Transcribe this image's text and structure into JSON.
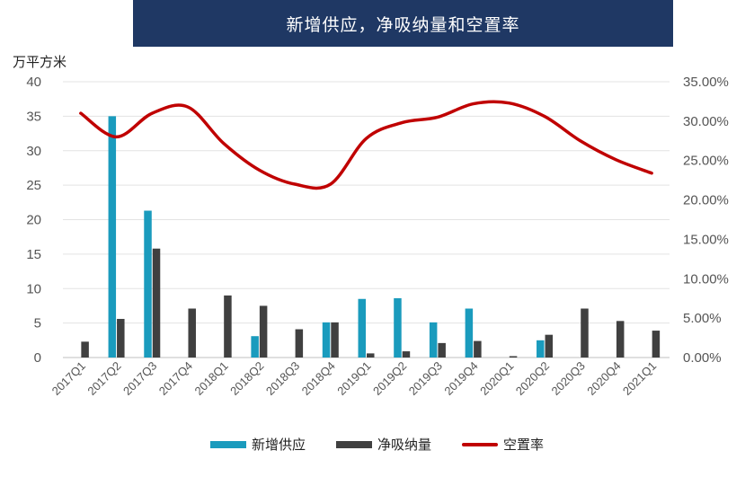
{
  "title": "新增供应，净吸纳量和空置率",
  "unit_label": "万平方米",
  "colors": {
    "supply": "#1a9bbd",
    "absorption": "#404040",
    "vacancy": "#c00000",
    "title_bg": "#1f3864"
  },
  "chart_data": {
    "type": "bar",
    "categories": [
      "2017Q1",
      "2017Q2",
      "2017Q3",
      "2017Q4",
      "2018Q1",
      "2018Q2",
      "2018Q3",
      "2018Q4",
      "2019Q1",
      "2019Q2",
      "2019Q3",
      "2019Q4",
      "2020Q1",
      "2020Q2",
      "2020Q3",
      "2020Q4",
      "2021Q1"
    ],
    "series": [
      {
        "name": "新增供应",
        "type": "bar",
        "axis": "left",
        "values": [
          0,
          35,
          21.3,
          0,
          0,
          3.1,
          0,
          5.1,
          8.5,
          8.6,
          5.1,
          7.1,
          0,
          2.5,
          0,
          0,
          0
        ]
      },
      {
        "name": "净吸纳量",
        "type": "bar",
        "axis": "left",
        "values": [
          2.3,
          5.6,
          15.8,
          7.1,
          9.0,
          7.5,
          4.1,
          5.1,
          0.6,
          0.9,
          2.1,
          2.4,
          0.2,
          3.3,
          7.1,
          5.3,
          3.9
        ]
      },
      {
        "name": "空置率",
        "type": "line",
        "axis": "right",
        "values": [
          0.31,
          0.28,
          0.31,
          0.318,
          0.272,
          0.238,
          0.22,
          0.22,
          0.278,
          0.298,
          0.305,
          0.322,
          0.323,
          0.306,
          0.275,
          0.251,
          0.234
        ]
      }
    ],
    "ylim_left": [
      0,
      40
    ],
    "yticks_left": [
      "0",
      "5",
      "10",
      "15",
      "20",
      "25",
      "30",
      "35",
      "40"
    ],
    "ylim_right": [
      0,
      0.35
    ],
    "yticks_right": [
      "0.00%",
      "5.00%",
      "10.00%",
      "15.00%",
      "20.00%",
      "25.00%",
      "30.00%",
      "35.00%"
    ],
    "grid": true,
    "legend_position": "bottom"
  }
}
